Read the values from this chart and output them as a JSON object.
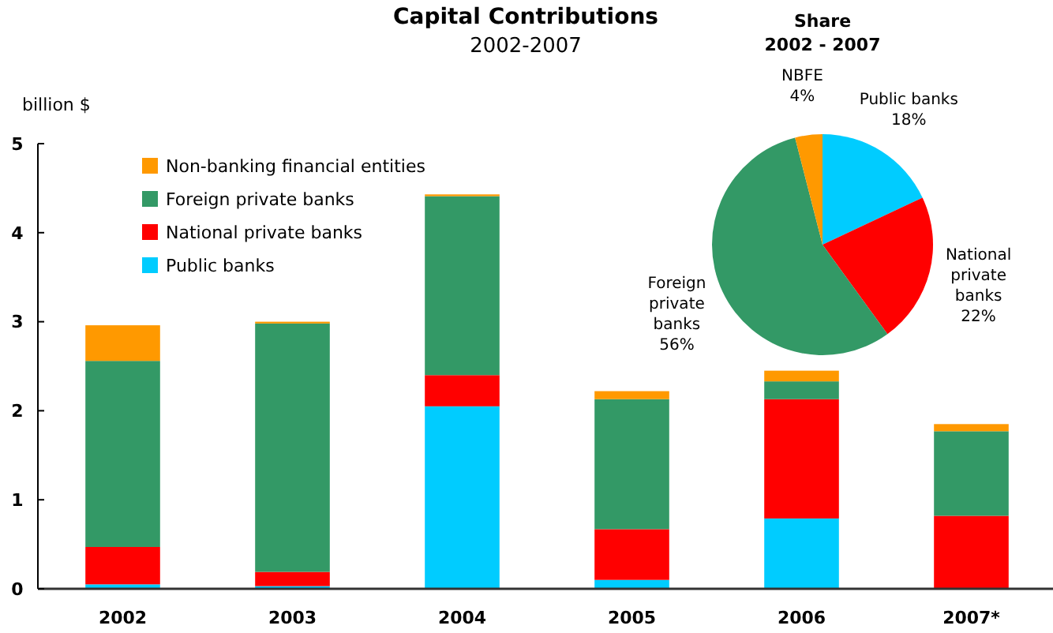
{
  "chart_data": [
    {
      "type": "bar",
      "title": "Capital Contributions",
      "subtitle": "2002-2007",
      "ylabel": "billion $",
      "categories": [
        "2002",
        "2003",
        "2004",
        "2005",
        "2006",
        "2007*"
      ],
      "stacked": true,
      "ylim": [
        0,
        5
      ],
      "yticks": [
        0,
        1,
        2,
        3,
        4,
        5
      ],
      "grid": false,
      "legend": "top left",
      "series": [
        {
          "name": "Public banks",
          "color": "#00ccff",
          "values": [
            0.05,
            0.03,
            2.05,
            0.1,
            0.79,
            0
          ]
        },
        {
          "name": "National private banks",
          "color": "#ff0000",
          "values": [
            0.42,
            0.16,
            0.35,
            0.57,
            1.34,
            0.82
          ]
        },
        {
          "name": "Foreign private banks",
          "color": "#339966",
          "values": [
            2.09,
            2.79,
            2.01,
            1.46,
            0.2,
            0.95
          ]
        },
        {
          "name": "Non-banking financial entities",
          "color": "#ff9900",
          "values": [
            0.4,
            0.02,
            0.02,
            0.09,
            0.12,
            0.08
          ]
        }
      ]
    },
    {
      "type": "pie",
      "title": "Share",
      "subtitle": "2002 - 2007",
      "categories": [
        "Public banks",
        "National private banks",
        "Foreign private banks",
        "NBFE"
      ],
      "values": [
        18,
        22,
        56,
        4
      ],
      "value_labels": [
        "18%",
        "22%",
        "56%",
        "4%"
      ],
      "colors": [
        "#00ccff",
        "#ff0000",
        "#339966",
        "#ff9900"
      ]
    }
  ]
}
